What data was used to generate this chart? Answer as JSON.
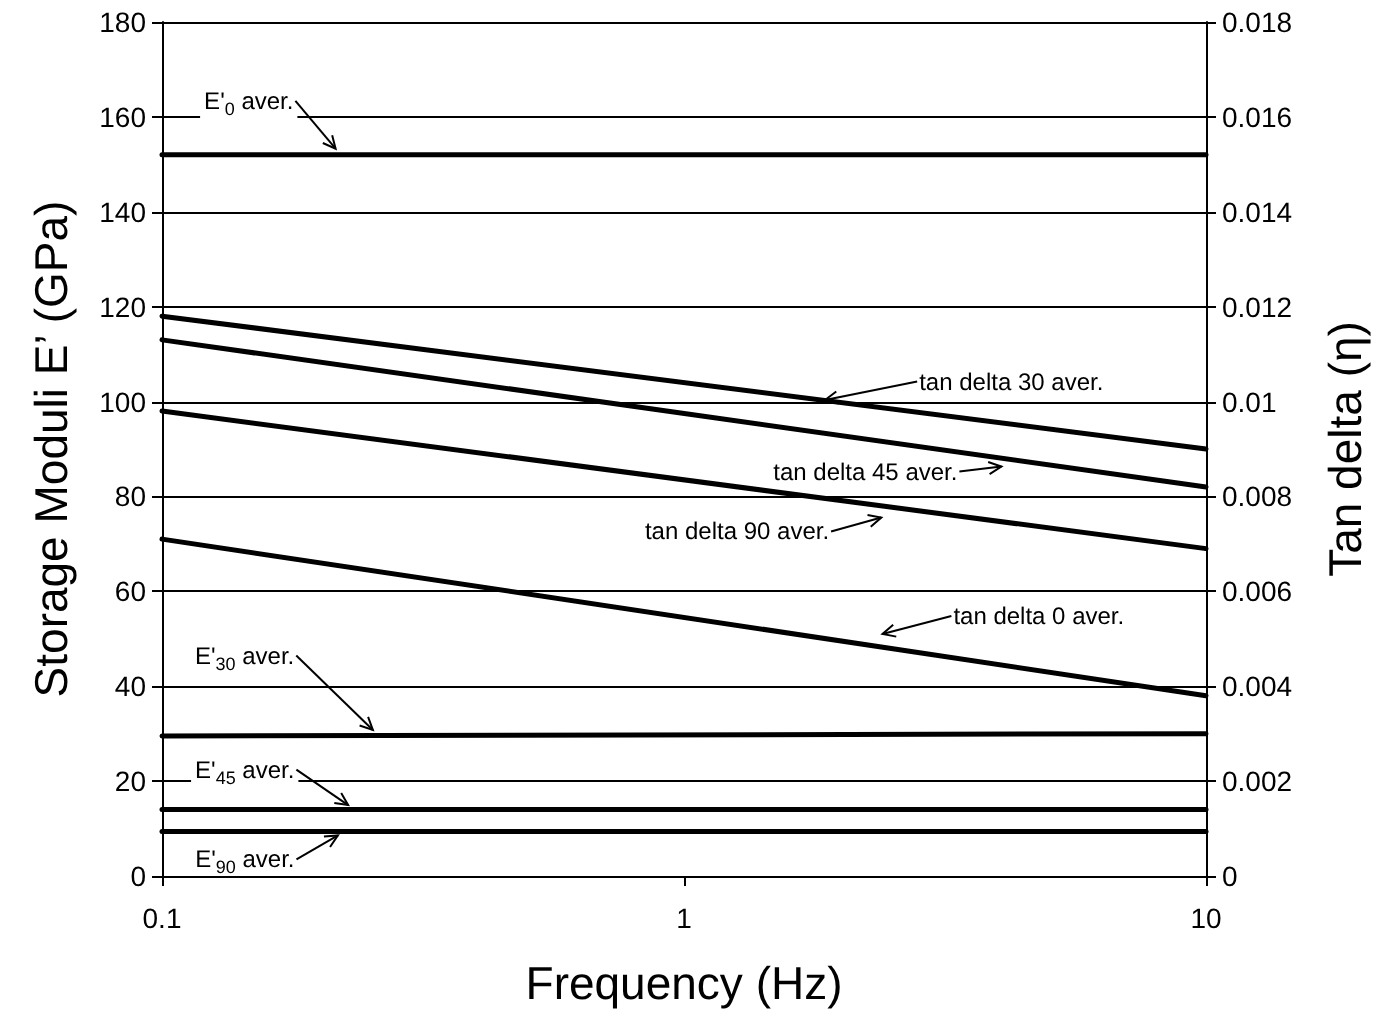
{
  "chart_data": {
    "type": "line",
    "xlabel": "Frequency (Hz)",
    "ylabel": "Storage Moduli E’ (GPa)",
    "y2label": "Tan delta (η)",
    "xlim": [
      0.1,
      10
    ],
    "xticks": [
      0.1,
      1,
      10
    ],
    "log": "x",
    "ylim": [
      0,
      180
    ],
    "yticks": [
      0,
      20,
      40,
      60,
      80,
      100,
      120,
      140,
      160,
      180
    ],
    "y2lim": [
      0,
      0.018
    ],
    "y2ticks": [
      0,
      0.002,
      0.004,
      0.006,
      0.008,
      0.01,
      0.012,
      0.014,
      0.016,
      0.018
    ],
    "grid": "y",
    "marker": "none",
    "line_style": "solid",
    "x": [
      0.1,
      10
    ],
    "series": [
      {
        "color": "#000000",
        "values": [
          152,
          152
        ]
      },
      {
        "color": "#000000",
        "values": [
          29.5,
          30
        ]
      },
      {
        "color": "#000000",
        "values": [
          14,
          14
        ]
      },
      {
        "color": "#000000",
        "values": [
          9.4,
          9.4
        ]
      },
      {
        "color": "#000000",
        "values": [
          0.0118,
          0.009
        ],
        "axis": "y2"
      },
      {
        "color": "#000000",
        "values": [
          0.0113,
          0.0082
        ],
        "axis": "y2"
      },
      {
        "color": "#000000",
        "values": [
          0.0098,
          0.0069
        ],
        "axis": "y2"
      },
      {
        "color": "#000000",
        "values": [
          0.0071,
          0.0038
        ],
        "axis": "y2"
      }
    ],
    "annotations": [
      {
        "text": "E'$_{0}$ aver.",
        "x": 0.22,
        "y": 152
      },
      {
        "text": "tan delta 30 aver.",
        "x": 1.8,
        "y": 100
      },
      {
        "text": "tan delta 45 aver.",
        "x": 4.2,
        "y": 86.5
      },
      {
        "text": "tan delta 90 aver.",
        "x": 2.47,
        "y": 76
      },
      {
        "text": "tan delta 0 aver.",
        "x": 2.32,
        "y": 50.6
      },
      {
        "text": "E'$_{30}$ aver.",
        "x": 0.26,
        "y": 29.6
      },
      {
        "text": "E'$_{45}$ aver.",
        "x": 0.234,
        "y": 14
      },
      {
        "text": "E'$_{90}$ aver.",
        "x": 0.224,
        "y": 9.4
      }
    ]
  }
}
